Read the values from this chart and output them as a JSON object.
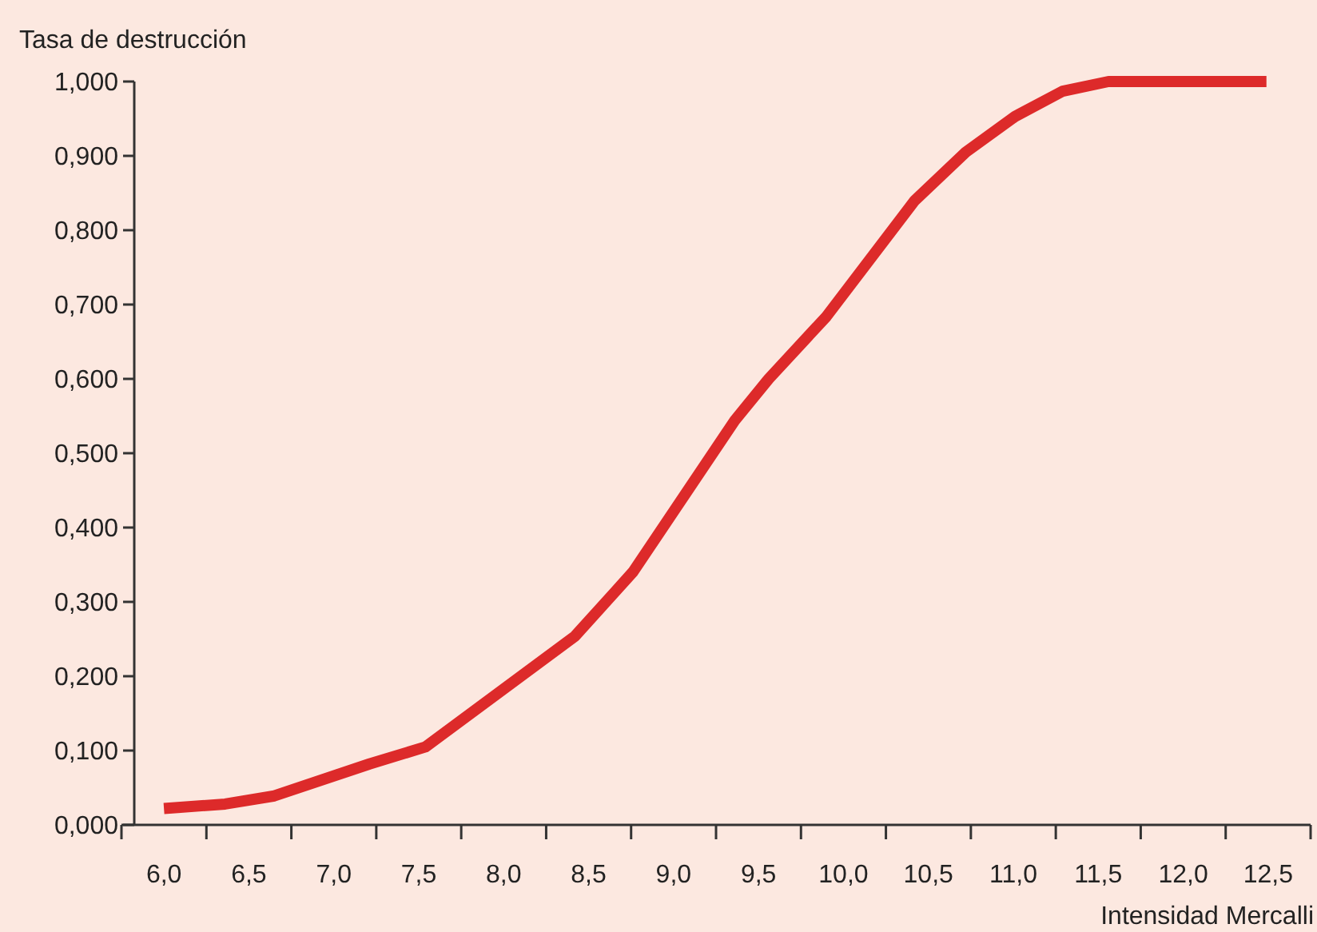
{
  "chart_data": {
    "type": "line",
    "xlabel": "Intensidad Mercalli",
    "ylabel": "Tasa de destrucción",
    "x": [
      6.0,
      6.36,
      6.65,
      7.21,
      7.54,
      8.42,
      8.76,
      9.36,
      9.56,
      9.9,
      10.42,
      10.72,
      11.01,
      11.29,
      11.56,
      12.49
    ],
    "series": [
      {
        "color": "#dd2a2a",
        "values": [
          0.022,
          0.028,
          0.039,
          0.082,
          0.105,
          0.254,
          0.34,
          0.544,
          0.6,
          0.684,
          0.84,
          0.905,
          0.953,
          0.987,
          1.0,
          1.0
        ]
      }
    ],
    "xlim": [
      5.75,
      12.75
    ],
    "xticks": [
      {
        "value": 5.75,
        "label": null
      },
      {
        "value": 6.0,
        "label": "6,0"
      },
      {
        "value": 6.25,
        "label": null
      },
      {
        "value": 6.5,
        "label": "6,5"
      },
      {
        "value": 6.75,
        "label": null
      },
      {
        "value": 7.0,
        "label": "7,0"
      },
      {
        "value": 7.25,
        "label": null
      },
      {
        "value": 7.5,
        "label": "7,5"
      },
      {
        "value": 7.75,
        "label": null
      },
      {
        "value": 8.0,
        "label": "8,0"
      },
      {
        "value": 8.25,
        "label": null
      },
      {
        "value": 8.5,
        "label": "8,5"
      },
      {
        "value": 8.75,
        "label": null
      },
      {
        "value": 9.0,
        "label": "9,0"
      },
      {
        "value": 9.25,
        "label": null
      },
      {
        "value": 9.5,
        "label": "9,5"
      },
      {
        "value": 9.75,
        "label": null
      },
      {
        "value": 10.0,
        "label": "10,0"
      },
      {
        "value": 10.25,
        "label": null
      },
      {
        "value": 10.5,
        "label": "10,5"
      },
      {
        "value": 10.75,
        "label": null
      },
      {
        "value": 11.0,
        "label": "11,0"
      },
      {
        "value": 11.25,
        "label": null
      },
      {
        "value": 11.5,
        "label": "11,5"
      },
      {
        "value": 11.75,
        "label": null
      },
      {
        "value": 12.0,
        "label": "12,0"
      },
      {
        "value": 12.25,
        "label": null
      },
      {
        "value": 12.5,
        "label": "12,5"
      },
      {
        "value": 12.75,
        "label": null
      }
    ],
    "ylim": [
      0,
      1
    ],
    "yticks": [
      {
        "value": 0,
        "label": "0,000"
      },
      {
        "value": 0.1,
        "label": "0,100"
      },
      {
        "value": 0.2,
        "label": "0,200"
      },
      {
        "value": 0.3,
        "label": "0,300"
      },
      {
        "value": 0.4,
        "label": "0,400"
      },
      {
        "value": 0.5,
        "label": "0,500"
      },
      {
        "value": 0.6,
        "label": "0,600"
      },
      {
        "value": 0.7,
        "label": "0,700"
      },
      {
        "value": 0.8,
        "label": "0,800"
      },
      {
        "value": 0.9,
        "label": "0,900"
      },
      {
        "value": 1,
        "label": "1,000"
      }
    ],
    "grid": false,
    "marker": "none",
    "line_style": "solid"
  }
}
